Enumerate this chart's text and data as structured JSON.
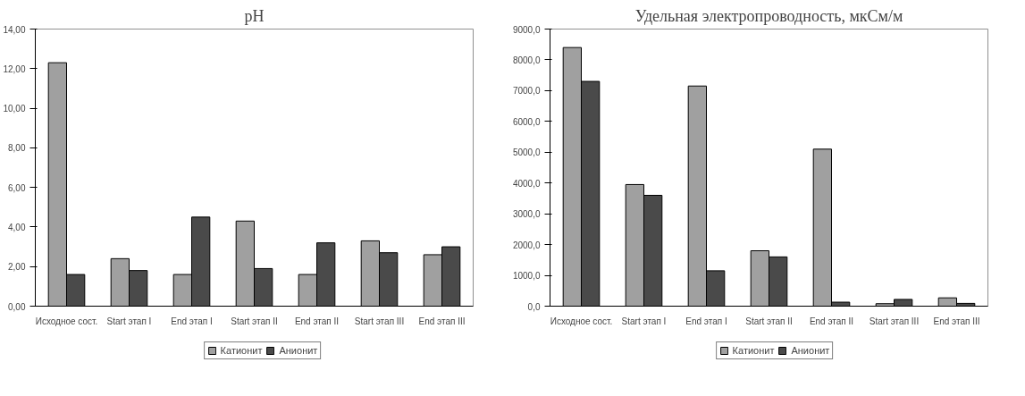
{
  "chart_data": [
    {
      "type": "bar",
      "title": "pH",
      "categories": [
        "Исходное сост.",
        "Start этап I",
        "End этап I",
        "Start этап II",
        "End этап II",
        "Start этап III",
        "End этап III"
      ],
      "series": [
        {
          "name": "Катионит",
          "color": "#a0a0a0",
          "values": [
            12.3,
            2.4,
            1.6,
            4.3,
            1.6,
            3.3,
            2.6
          ]
        },
        {
          "name": "Анионит",
          "color": "#4a4a4a",
          "values": [
            1.6,
            1.8,
            4.5,
            1.9,
            3.2,
            2.7,
            3.0
          ]
        }
      ],
      "ylim": [
        0,
        14
      ],
      "yticks": [
        {
          "value": 0,
          "label": "0,00"
        },
        {
          "value": 2,
          "label": "2,00"
        },
        {
          "value": 4,
          "label": "4,00"
        },
        {
          "value": 6,
          "label": "6,00"
        },
        {
          "value": 8,
          "label": "8,00"
        },
        {
          "value": 10,
          "label": "10,00"
        },
        {
          "value": 12,
          "label": "12,00"
        },
        {
          "value": 14,
          "label": "14,00"
        }
      ],
      "grid": false,
      "legend": "bottom"
    },
    {
      "type": "bar",
      "title": "Удельная электропроводность, мкСм/м",
      "categories": [
        "Исходное сост.",
        "Start этап I",
        "End этап I",
        "Start этап II",
        "End этап II",
        "Start этап III",
        "End этап III"
      ],
      "series": [
        {
          "name": "Катионит",
          "color": "#a0a0a0",
          "values": [
            8400,
            3950,
            7150,
            1800,
            5100,
            80,
            270
          ]
        },
        {
          "name": "Анионит",
          "color": "#4a4a4a",
          "values": [
            7300,
            3600,
            1150,
            1600,
            130,
            220,
            90
          ]
        }
      ],
      "ylim": [
        0,
        9000
      ],
      "yticks": [
        {
          "value": 0,
          "label": "0,0"
        },
        {
          "value": 1000,
          "label": "1000,0"
        },
        {
          "value": 2000,
          "label": "2000,0"
        },
        {
          "value": 3000,
          "label": "3000,0"
        },
        {
          "value": 4000,
          "label": "4000,0"
        },
        {
          "value": 5000,
          "label": "5000,0"
        },
        {
          "value": 6000,
          "label": "6000,0"
        },
        {
          "value": 7000,
          "label": "7000,0"
        },
        {
          "value": 8000,
          "label": "8000,0"
        },
        {
          "value": 9000,
          "label": "9000,0"
        }
      ],
      "grid": false,
      "legend": "bottom"
    }
  ]
}
